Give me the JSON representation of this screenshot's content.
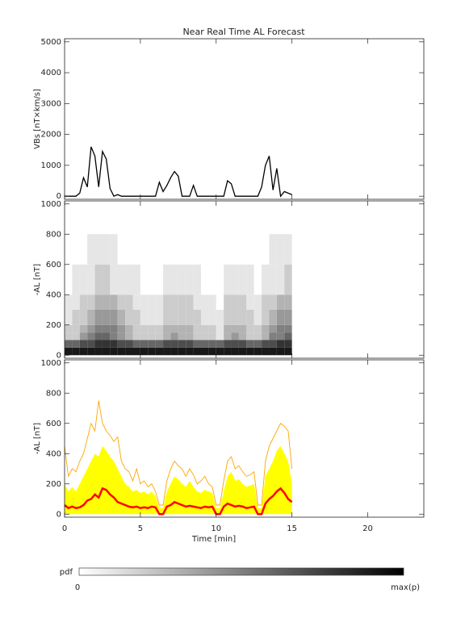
{
  "chart_data": [
    {
      "type": "line",
      "title": "Near Real Time AL Forecast",
      "ylabel": "VBs [nT×km/s]",
      "x": [
        0,
        0.25,
        0.5,
        0.75,
        1,
        1.25,
        1.5,
        1.75,
        2,
        2.25,
        2.5,
        2.75,
        3,
        3.25,
        3.5,
        3.75,
        4,
        4.25,
        4.5,
        4.75,
        5,
        5.25,
        5.5,
        5.75,
        6,
        6.25,
        6.5,
        6.75,
        7,
        7.25,
        7.5,
        7.75,
        8,
        8.25,
        8.5,
        8.75,
        9,
        9.25,
        9.5,
        9.75,
        10,
        10.25,
        10.5,
        10.75,
        11,
        11.25,
        11.5,
        11.75,
        12,
        12.25,
        12.5,
        12.75,
        13,
        13.25,
        13.5,
        13.75,
        14,
        14.25,
        14.5,
        14.75,
        15
      ],
      "values": [
        0,
        0,
        0,
        0,
        100,
        600,
        300,
        1600,
        1300,
        300,
        1450,
        1200,
        250,
        0,
        50,
        0,
        0,
        0,
        0,
        0,
        0,
        0,
        0,
        0,
        0,
        450,
        150,
        350,
        600,
        800,
        650,
        0,
        0,
        0,
        350,
        0,
        0,
        0,
        0,
        0,
        0,
        0,
        0,
        500,
        400,
        0,
        0,
        0,
        0,
        0,
        0,
        0,
        300,
        1000,
        1300,
        200,
        900,
        0,
        150,
        100,
        50
      ],
      "color": "#000000",
      "xlim": [
        0,
        23.7
      ],
      "xticks": [
        0,
        5,
        10,
        15,
        20
      ],
      "ylim": [
        -100,
        5100
      ],
      "yticks": [
        0,
        1000,
        2000,
        3000,
        4000,
        5000
      ]
    },
    {
      "type": "heatmap",
      "ylabel": "-AL [nT]",
      "xbins": [
        0,
        0.5,
        1,
        1.5,
        2,
        2.5,
        3,
        3.5,
        4,
        4.5,
        5,
        5.5,
        6,
        6.5,
        7,
        7.5,
        8,
        8.5,
        9,
        9.5,
        10,
        10.5,
        11,
        11.5,
        12,
        12.5,
        13,
        13.5,
        14,
        14.5,
        15
      ],
      "ybins": [
        0,
        50,
        100,
        150,
        200,
        300,
        400,
        600,
        800
      ],
      "density": [
        [
          0.9,
          0.6,
          0.2,
          0.2,
          0.1,
          0.1,
          0,
          0
        ],
        [
          0.9,
          0.6,
          0.2,
          0.2,
          0.2,
          0.1,
          0.1,
          0
        ],
        [
          0.9,
          0.7,
          0.4,
          0.3,
          0.2,
          0.2,
          0.1,
          0
        ],
        [
          0.9,
          0.7,
          0.5,
          0.4,
          0.3,
          0.2,
          0.1,
          0.1
        ],
        [
          0.9,
          0.8,
          0.6,
          0.5,
          0.4,
          0.3,
          0.2,
          0.1
        ],
        [
          0.9,
          0.8,
          0.6,
          0.5,
          0.4,
          0.3,
          0.2,
          0.1
        ],
        [
          0.9,
          0.8,
          0.5,
          0.5,
          0.4,
          0.3,
          0.1,
          0.1
        ],
        [
          0.9,
          0.7,
          0.4,
          0.4,
          0.3,
          0.2,
          0.1,
          0
        ],
        [
          0.9,
          0.7,
          0.3,
          0.3,
          0.2,
          0.2,
          0.1,
          0
        ],
        [
          0.9,
          0.6,
          0.2,
          0.2,
          0.2,
          0.1,
          0.1,
          0
        ],
        [
          0.9,
          0.6,
          0.2,
          0.2,
          0.1,
          0.1,
          0,
          0
        ],
        [
          0.9,
          0.6,
          0.2,
          0.2,
          0.1,
          0.1,
          0,
          0
        ],
        [
          0.9,
          0.6,
          0.2,
          0.2,
          0.1,
          0.1,
          0,
          0
        ],
        [
          0.9,
          0.7,
          0.3,
          0.3,
          0.2,
          0.2,
          0.1,
          0
        ],
        [
          0.9,
          0.7,
          0.4,
          0.3,
          0.2,
          0.2,
          0.1,
          0
        ],
        [
          0.9,
          0.7,
          0.3,
          0.3,
          0.2,
          0.2,
          0.1,
          0
        ],
        [
          0.9,
          0.7,
          0.3,
          0.3,
          0.2,
          0.2,
          0.1,
          0
        ],
        [
          0.9,
          0.6,
          0.2,
          0.2,
          0.2,
          0.1,
          0.1,
          0
        ],
        [
          0.9,
          0.6,
          0.2,
          0.2,
          0.1,
          0.1,
          0,
          0
        ],
        [
          0.9,
          0.6,
          0.2,
          0.2,
          0.1,
          0.1,
          0,
          0
        ],
        [
          0.9,
          0.6,
          0.1,
          0.1,
          0.1,
          0,
          0,
          0
        ],
        [
          0.9,
          0.7,
          0.3,
          0.3,
          0.2,
          0.2,
          0.1,
          0
        ],
        [
          0.9,
          0.7,
          0.4,
          0.3,
          0.2,
          0.2,
          0.1,
          0
        ],
        [
          0.9,
          0.7,
          0.3,
          0.3,
          0.2,
          0.2,
          0.1,
          0
        ],
        [
          0.9,
          0.6,
          0.2,
          0.2,
          0.2,
          0.1,
          0.1,
          0
        ],
        [
          0.9,
          0.6,
          0.2,
          0.2,
          0.1,
          0.1,
          0,
          0
        ],
        [
          0.9,
          0.7,
          0.3,
          0.3,
          0.2,
          0.2,
          0.1,
          0
        ],
        [
          0.9,
          0.7,
          0.5,
          0.4,
          0.3,
          0.2,
          0.1,
          0.1
        ],
        [
          0.9,
          0.8,
          0.5,
          0.5,
          0.4,
          0.3,
          0.1,
          0.1
        ],
        [
          0.9,
          0.8,
          0.6,
          0.5,
          0.4,
          0.3,
          0.2,
          0.1
        ]
      ],
      "xlim": [
        0,
        23.7
      ],
      "xticks": [
        0,
        5,
        10,
        15,
        20
      ],
      "ylim": [
        -20,
        1020
      ],
      "yticks": [
        0,
        200,
        400,
        600,
        800,
        1000
      ]
    },
    {
      "type": "ensemble",
      "ylabel": "-AL [nT]",
      "xlabel": "Time [min]",
      "x": [
        0,
        0.25,
        0.5,
        0.75,
        1,
        1.25,
        1.5,
        1.75,
        2,
        2.25,
        2.5,
        2.75,
        3,
        3.25,
        3.5,
        3.75,
        4,
        4.25,
        4.5,
        4.75,
        5,
        5.25,
        5.5,
        5.75,
        6,
        6.25,
        6.5,
        6.75,
        7,
        7.25,
        7.5,
        7.75,
        8,
        8.25,
        8.5,
        8.75,
        9,
        9.25,
        9.5,
        9.75,
        10,
        10.25,
        10.5,
        10.75,
        11,
        11.25,
        11.5,
        11.75,
        12,
        12.25,
        12.5,
        12.75,
        13,
        13.25,
        13.5,
        13.75,
        14,
        14.25,
        14.5,
        14.75,
        15
      ],
      "series": [
        {
          "color": "#ffff00",
          "fill": true,
          "values": [
            200,
            150,
            180,
            150,
            200,
            250,
            300,
            350,
            400,
            380,
            450,
            420,
            380,
            350,
            300,
            250,
            200,
            180,
            150,
            160,
            140,
            150,
            130,
            150,
            120,
            40,
            40,
            150,
            200,
            250,
            230,
            200,
            180,
            220,
            180,
            150,
            140,
            160,
            150,
            140,
            40,
            40,
            150,
            250,
            280,
            220,
            230,
            200,
            180,
            190,
            200,
            40,
            40,
            250,
            300,
            350,
            420,
            450,
            400,
            350,
            200
          ]
        },
        {
          "color": "#ffa500",
          "fill": false,
          "values": [
            450,
            250,
            300,
            280,
            350,
            400,
            500,
            600,
            550,
            750,
            600,
            550,
            520,
            480,
            510,
            350,
            300,
            280,
            220,
            300,
            200,
            220,
            180,
            200,
            150,
            60,
            60,
            220,
            300,
            350,
            320,
            300,
            250,
            300,
            260,
            200,
            220,
            250,
            200,
            180,
            60,
            60,
            220,
            350,
            380,
            300,
            320,
            280,
            250,
            260,
            280,
            60,
            60,
            350,
            450,
            500,
            550,
            600,
            580,
            550,
            300
          ]
        },
        {
          "color": "#ff0000",
          "fill": false,
          "values": [
            60,
            40,
            50,
            40,
            45,
            60,
            90,
            100,
            130,
            110,
            170,
            160,
            130,
            110,
            80,
            70,
            60,
            50,
            45,
            50,
            40,
            45,
            40,
            50,
            45,
            0,
            0,
            50,
            60,
            80,
            70,
            60,
            50,
            55,
            50,
            45,
            40,
            50,
            45,
            50,
            0,
            0,
            50,
            70,
            60,
            50,
            55,
            50,
            40,
            45,
            50,
            0,
            0,
            70,
            100,
            120,
            150,
            170,
            140,
            100,
            80
          ]
        }
      ],
      "xlim": [
        0,
        23.7
      ],
      "xticks": [
        0,
        5,
        10,
        15,
        20
      ],
      "ylim": [
        -20,
        1020
      ],
      "yticks": [
        0,
        200,
        400,
        600,
        800,
        1000
      ]
    }
  ],
  "colorbar": {
    "label": "pdf",
    "min_label": "0",
    "max_label": "max(p)"
  }
}
